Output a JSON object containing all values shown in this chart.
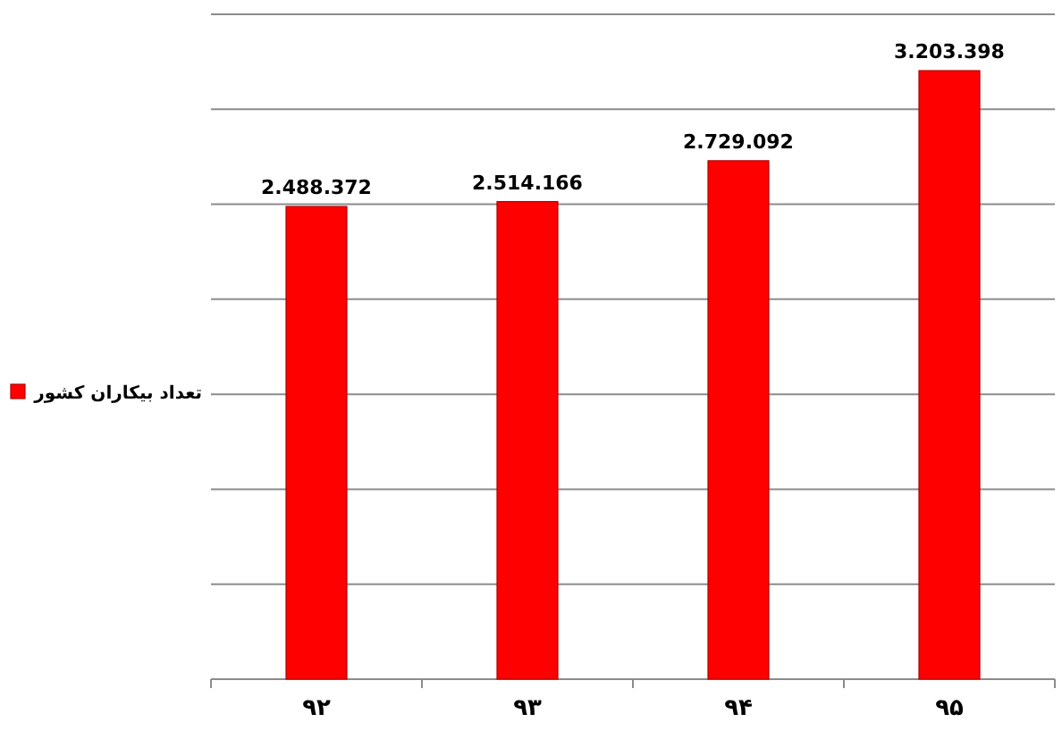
{
  "chart_data": {
    "type": "bar",
    "categories": [
      "۹۲",
      "۹۳",
      "۹۴",
      "۹۵"
    ],
    "series": [
      {
        "name": "تعداد بیکاران کشور",
        "color": "#ff0000",
        "values": [
          2488372,
          2514166,
          2729092,
          3203398
        ],
        "value_labels": [
          "2.488.372",
          "2.514.166",
          "2.729.092",
          "3.203.398"
        ]
      }
    ],
    "ylim": [
      0,
      3500000
    ],
    "yticks": [
      {
        "value": 0,
        "label": null
      },
      {
        "value": 500000,
        "label": null
      },
      {
        "value": 1000000,
        "label": null
      },
      {
        "value": 1500000,
        "label": null
      },
      {
        "value": 2000000,
        "label": null
      },
      {
        "value": 2500000,
        "label": null
      },
      {
        "value": 3000000,
        "label": null
      },
      {
        "value": 3500000,
        "label": null
      }
    ],
    "grid": "y",
    "legend": "left"
  }
}
